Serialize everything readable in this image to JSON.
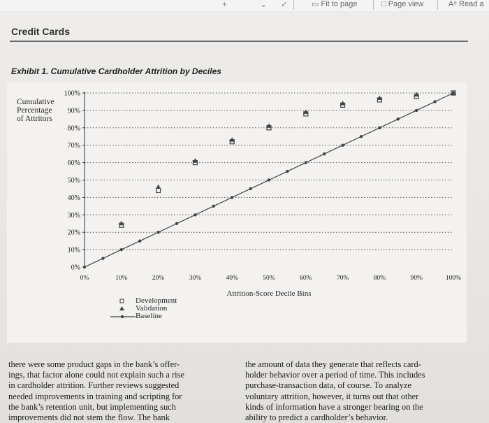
{
  "toolbar": {
    "fit_to_page": "Fit to page",
    "page_view": "Page view",
    "read_aloud": "Read a"
  },
  "document": {
    "section_title": "Credit Cards",
    "exhibit_title": "Exhibit 1. Cumulative Cardholder Attrition by Deciles",
    "body_left": [
      "there were some product gaps in the bank’s offer-",
      "ings, that factor alone could not explain such a rise",
      "in cardholder attrition. Further reviews suggested",
      "needed improvements in training and scripting for",
      "the bank’s retention unit, but implementing such",
      "improvements did not stem the flow. The bank"
    ],
    "body_right": [
      "the amount of data they generate that reflects card-",
      "holder behavior over a period of time. This includes",
      "purchase-transaction data, of course. To analyze",
      "voluntary attrition, however, it turns out that other",
      "kinds of information have a stronger bearing on the",
      "ability to predict a cardholder’s behavior."
    ]
  },
  "chart_data": {
    "type": "line",
    "title": "Exhibit 1. Cumulative Cardholder Attrition by Deciles",
    "ylabel_lines": [
      "Cumulative",
      "Percentage",
      "of Attritors"
    ],
    "xlabel": "Attrition-Score Decile Bins",
    "xlim": [
      0,
      100
    ],
    "ylim": [
      0,
      100
    ],
    "grid": "horizontal dotted",
    "x_ticks": [
      "0%",
      "10%",
      "20%",
      "30%",
      "40%",
      "50%",
      "60%",
      "70%",
      "80%",
      "90%",
      "100%"
    ],
    "y_ticks": [
      "0%",
      "10%",
      "20%",
      "30%",
      "40%",
      "50%",
      "60%",
      "70%",
      "80%",
      "90%",
      "100%"
    ],
    "series": [
      {
        "name": "Development",
        "marker": "square",
        "color": "#444444",
        "x": [
          10,
          20,
          30,
          40,
          50,
          60,
          70,
          80,
          90,
          100
        ],
        "y": [
          24,
          44,
          60,
          72,
          80,
          88,
          93,
          96,
          98,
          100
        ]
      },
      {
        "name": "Validation",
        "marker": "triangle",
        "color": "#444444",
        "x": [
          10,
          20,
          30,
          40,
          50,
          60,
          70,
          80,
          90,
          100
        ],
        "y": [
          25,
          46,
          61,
          73,
          81,
          89,
          94,
          97,
          99,
          100
        ]
      },
      {
        "name": "Baseline",
        "marker": "dot-line",
        "color": "#444444",
        "x": [
          0,
          5,
          10,
          15,
          20,
          25,
          30,
          35,
          40,
          45,
          50,
          55,
          60,
          65,
          70,
          75,
          80,
          85,
          90,
          95,
          100
        ],
        "y": [
          0,
          5,
          10,
          15,
          20,
          25,
          30,
          35,
          40,
          45,
          50,
          55,
          60,
          65,
          70,
          75,
          80,
          85,
          90,
          95,
          100
        ]
      }
    ]
  }
}
